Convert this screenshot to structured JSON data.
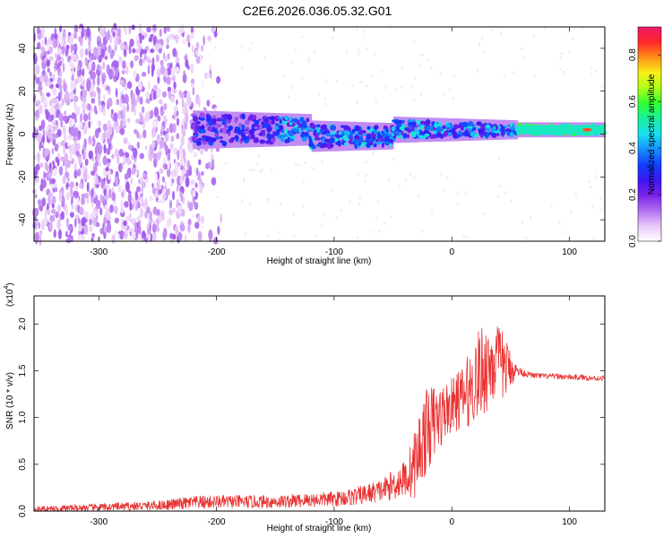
{
  "title": "C2E6.2026.036.05.32.G01",
  "colors": {
    "snr_line": "#e83232",
    "spectrogram_background": "#ffffff",
    "colormap": [
      "#ffffff",
      "#e8c8f8",
      "#b070f0",
      "#7a22e6",
      "#3c16f2",
      "#1040ff",
      "#1890ff",
      "#18e0f0",
      "#18f0a0",
      "#30ff30",
      "#b0ff18",
      "#f8f018",
      "#ff9018",
      "#ff2828",
      "#f0186a"
    ]
  },
  "chart_data": [
    {
      "type": "heatmap",
      "title": "C2E6.2026.036.05.32.G01",
      "xlabel": "Height of straight line (km)",
      "ylabel": "Frequency (Hz)",
      "xlim": [
        -355,
        130
      ],
      "ylim": [
        -50,
        50
      ],
      "xticks": [
        -300,
        -200,
        -100,
        0,
        100
      ],
      "xtick_labels": [
        "-300",
        "-200",
        "-100",
        "0",
        "100"
      ],
      "yticks": [
        -40,
        -20,
        0,
        20,
        40
      ],
      "ytick_labels": [
        "-40",
        "-20",
        "0",
        "20",
        "40"
      ],
      "colorbar": {
        "label": "Normalized spectral amplitude",
        "range": [
          0,
          0.92
        ],
        "ticks": [
          0.0,
          0.2,
          0.4,
          0.6,
          0.8
        ],
        "tick_labels": [
          "0.0",
          "0.2",
          "0.4",
          "0.6",
          "0.8"
        ]
      },
      "description_values": {
        "noise_region_x": [
          -355,
          -220
        ],
        "signal_start_x": -220,
        "signal_center_freq": 2,
        "peak_amplitude_x": 115
      }
    },
    {
      "type": "line",
      "xlabel": "Height of straight line (km)",
      "ylabel": "SNR (10 * v/v)",
      "y_multiplier_label": "(x10",
      "y_multiplier_exp": "4",
      "y_multiplier_close": ")",
      "xlim": [
        -355,
        130
      ],
      "ylim": [
        0,
        2.3
      ],
      "xticks": [
        -300,
        -200,
        -100,
        0,
        100
      ],
      "xtick_labels": [
        "-300",
        "-200",
        "-100",
        "0",
        "100"
      ],
      "yticks": [
        0.0,
        0.5,
        1.0,
        1.5,
        2.0
      ],
      "ytick_labels": [
        "0.0",
        "0.5",
        "1.0",
        "1.5",
        "2.0"
      ],
      "series": [
        {
          "x": [
            -355,
            -300,
            -250,
            -220,
            -200,
            -150,
            -100,
            -80,
            -60,
            -50,
            -40,
            -35,
            -30,
            -25,
            -20,
            -15,
            -10,
            -5,
            0,
            5,
            10,
            15,
            20,
            25,
            30,
            35,
            40,
            45,
            50,
            55,
            60,
            65,
            70,
            80,
            90,
            100,
            110,
            120,
            130
          ],
          "y": [
            0.02,
            0.04,
            0.06,
            0.09,
            0.1,
            0.1,
            0.13,
            0.16,
            0.22,
            0.28,
            0.35,
            0.42,
            0.55,
            0.75,
            0.9,
            0.95,
            1.0,
            1.08,
            1.12,
            1.18,
            1.22,
            1.3,
            1.4,
            1.5,
            1.55,
            1.6,
            1.58,
            1.55,
            1.52,
            1.5,
            1.48,
            1.46,
            1.45,
            1.44,
            1.44,
            1.43,
            1.43,
            1.42,
            1.42
          ],
          "noise_amplitude": [
            0.03,
            0.04,
            0.05,
            0.07,
            0.07,
            0.07,
            0.08,
            0.1,
            0.12,
            0.16,
            0.2,
            0.3,
            0.4,
            0.45,
            0.45,
            0.4,
            0.35,
            0.3,
            0.3,
            0.32,
            0.35,
            0.4,
            0.45,
            0.5,
            0.5,
            0.45,
            0.4,
            0.35,
            0.2,
            0.06,
            0.04,
            0.03,
            0.03,
            0.03,
            0.03,
            0.03,
            0.03,
            0.03,
            0.03
          ]
        }
      ]
    }
  ]
}
